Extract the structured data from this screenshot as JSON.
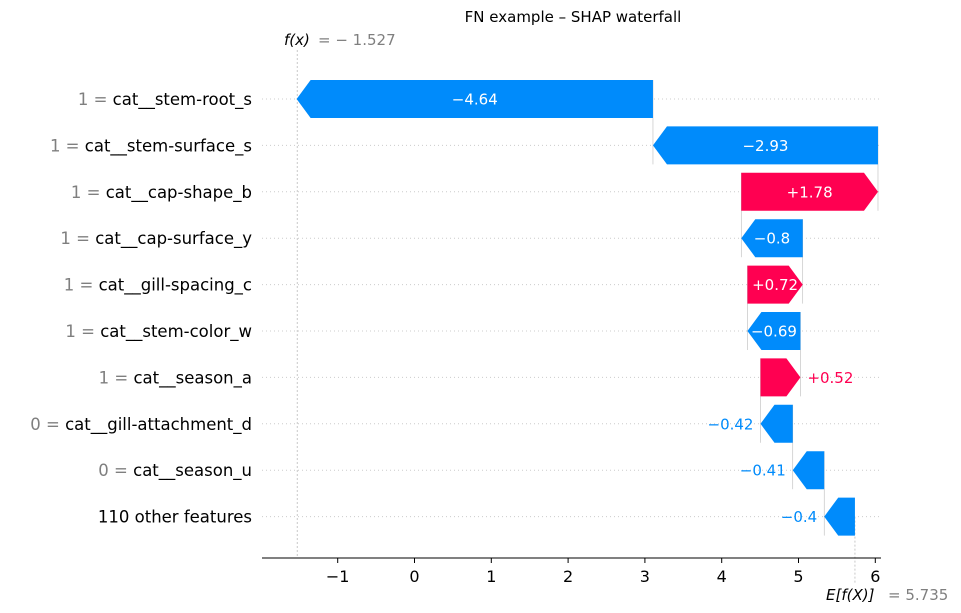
{
  "chart_data": {
    "type": "waterfall",
    "title": "FN example – SHAP waterfall",
    "fx_label": "f(x)",
    "fx_value": "= − 1.527",
    "ex_label": "E[f(X)]",
    "ex_value": "= 5.735",
    "fx": -1.527,
    "base_value": 5.735,
    "xlim": [
      -1.95,
      6.1
    ],
    "xticks": [
      -1,
      0,
      1,
      2,
      3,
      4,
      5,
      6
    ],
    "xtick_labels": [
      "−1",
      "0",
      "1",
      "2",
      "3",
      "4",
      "5",
      "6"
    ],
    "colors": {
      "positive": "#ff0051",
      "negative": "#008bfb",
      "label_inside": "#ffffff"
    },
    "features": [
      {
        "value_text": "1 =",
        "name": "cat__stem-root_s",
        "shap": -4.64,
        "label": "−4.64",
        "label_inside": true
      },
      {
        "value_text": "1 =",
        "name": "cat__stem-surface_s",
        "shap": -2.93,
        "label": "−2.93",
        "label_inside": true
      },
      {
        "value_text": "1 =",
        "name": "cat__cap-shape_b",
        "shap": 1.78,
        "label": "+1.78",
        "label_inside": true
      },
      {
        "value_text": "1 =",
        "name": "cat__cap-surface_y",
        "shap": -0.8,
        "label": "−0.8",
        "label_inside": true
      },
      {
        "value_text": "1 =",
        "name": "cat__gill-spacing_c",
        "shap": 0.72,
        "label": "+0.72",
        "label_inside": true
      },
      {
        "value_text": "1 =",
        "name": "cat__stem-color_w",
        "shap": -0.69,
        "label": "−0.69",
        "label_inside": true
      },
      {
        "value_text": "1 =",
        "name": "cat__season_a",
        "shap": 0.52,
        "label": "+0.52",
        "label_inside": false
      },
      {
        "value_text": "0 =",
        "name": "cat__gill-attachment_d",
        "shap": -0.42,
        "label": "−0.42",
        "label_inside": false
      },
      {
        "value_text": "0 =",
        "name": "cat__season_u",
        "shap": -0.41,
        "label": "−0.41",
        "label_inside": false
      },
      {
        "value_text": "",
        "name": "110 other features",
        "shap": -0.4,
        "label": "−0.4",
        "label_inside": false
      }
    ]
  }
}
